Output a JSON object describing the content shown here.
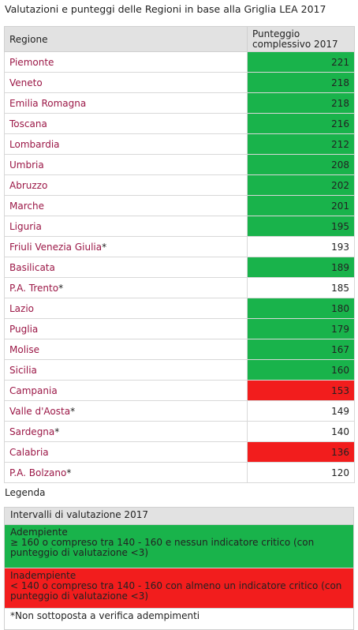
{
  "title": "Valutazioni e punteggi delle Regioni in base alla Griglia LEA 2017",
  "table": {
    "header_region": "Regione",
    "header_score_line1": "Punteggio",
    "header_score_line2": "complessivo 2017",
    "rows": [
      {
        "region": "Piemonte",
        "star": "",
        "score": "221",
        "status": "green"
      },
      {
        "region": "Veneto",
        "star": "",
        "score": "218",
        "status": "green"
      },
      {
        "region": "Emilia Romagna",
        "star": "",
        "score": "218",
        "status": "green"
      },
      {
        "region": "Toscana",
        "star": "",
        "score": "216",
        "status": "green"
      },
      {
        "region": "Lombardia",
        "star": "",
        "score": "212",
        "status": "green"
      },
      {
        "region": "Umbria",
        "star": "",
        "score": "208",
        "status": "green"
      },
      {
        "region": "Abruzzo",
        "star": "",
        "score": "202",
        "status": "green"
      },
      {
        "region": "Marche",
        "star": "",
        "score": "201",
        "status": "green"
      },
      {
        "region": "Liguria",
        "star": "",
        "score": "195",
        "status": "green"
      },
      {
        "region": "Friuli Venezia Giulia",
        "star": "*",
        "score": "193",
        "status": "white"
      },
      {
        "region": "Basilicata",
        "star": "",
        "score": "189",
        "status": "green"
      },
      {
        "region": "P.A. Trento",
        "star": "*",
        "score": "185",
        "status": "white"
      },
      {
        "region": "Lazio",
        "star": "",
        "score": "180",
        "status": "green"
      },
      {
        "region": "Puglia",
        "star": "",
        "score": "179",
        "status": "green"
      },
      {
        "region": "Molise",
        "star": "",
        "score": "167",
        "status": "green"
      },
      {
        "region": "Sicilia",
        "star": "",
        "score": "160",
        "status": "green"
      },
      {
        "region": "Campania",
        "star": "",
        "score": "153",
        "status": "red"
      },
      {
        "region": "Valle d'Aosta",
        "star": "*",
        "score": "149",
        "status": "white"
      },
      {
        "region": "Sardegna",
        "star": "*",
        "score": "140",
        "status": "white"
      },
      {
        "region": "Calabria",
        "star": "",
        "score": "136",
        "status": "red"
      },
      {
        "region": "P.A. Bolzano",
        "star": "*",
        "score": "120",
        "status": "white"
      }
    ]
  },
  "legend": {
    "label": "Legenda",
    "header": "Intervalli di valutazione 2017",
    "green_title": "Adempiente",
    "green_text": "≥ 160 o compreso tra 140 - 160 e nessun indicatore critico (con punteggio di valutazione <3)",
    "red_title": "Inadempiente",
    "red_text": "< 140 o compreso tra 140 - 160 con almeno un indicatore critico (con punteggio di valutazione <3)",
    "note": "*Non sottoposta a verifica adempimenti"
  },
  "colors": {
    "green": "#19b34b",
    "red": "#f21d1d",
    "region_text": "#9b1746",
    "header_bg": "#e2e2e2"
  }
}
